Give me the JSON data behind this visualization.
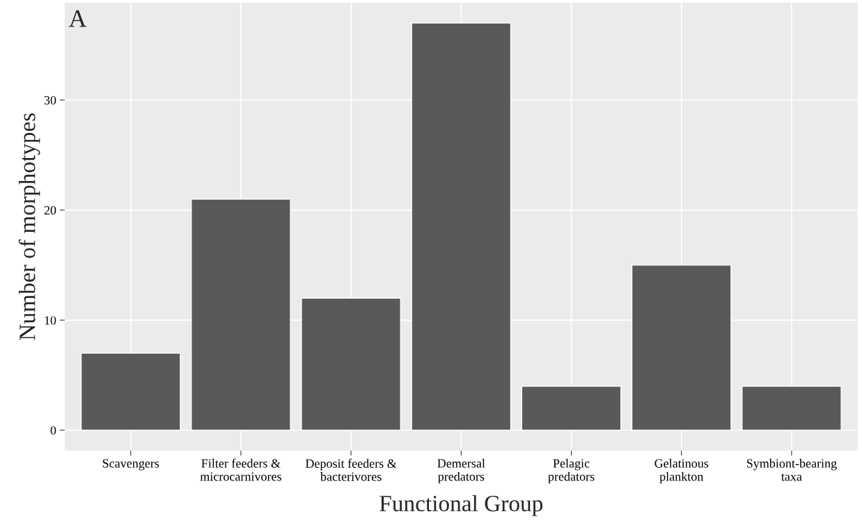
{
  "chart_data": {
    "type": "bar",
    "xlabel": "Functional Group",
    "ylabel": "Number of morphotypes",
    "annotations": [
      "A"
    ],
    "categories": [
      "Scavengers",
      "Filter feeders &\nmicrocarnivores",
      "Deposit feeders &\nbacterivores",
      "Demersal\npredators",
      "Pelagic\npredators",
      "Gelatinous\nplankton",
      "Symbiont-bearing\ntaxa"
    ],
    "values": [
      7,
      21,
      12,
      37,
      4,
      15,
      4
    ],
    "color": "#595959",
    "ylim": [
      -1.85,
      38.85
    ],
    "yticks": [
      0,
      10,
      20,
      30
    ],
    "grid": true,
    "legend": false
  }
}
